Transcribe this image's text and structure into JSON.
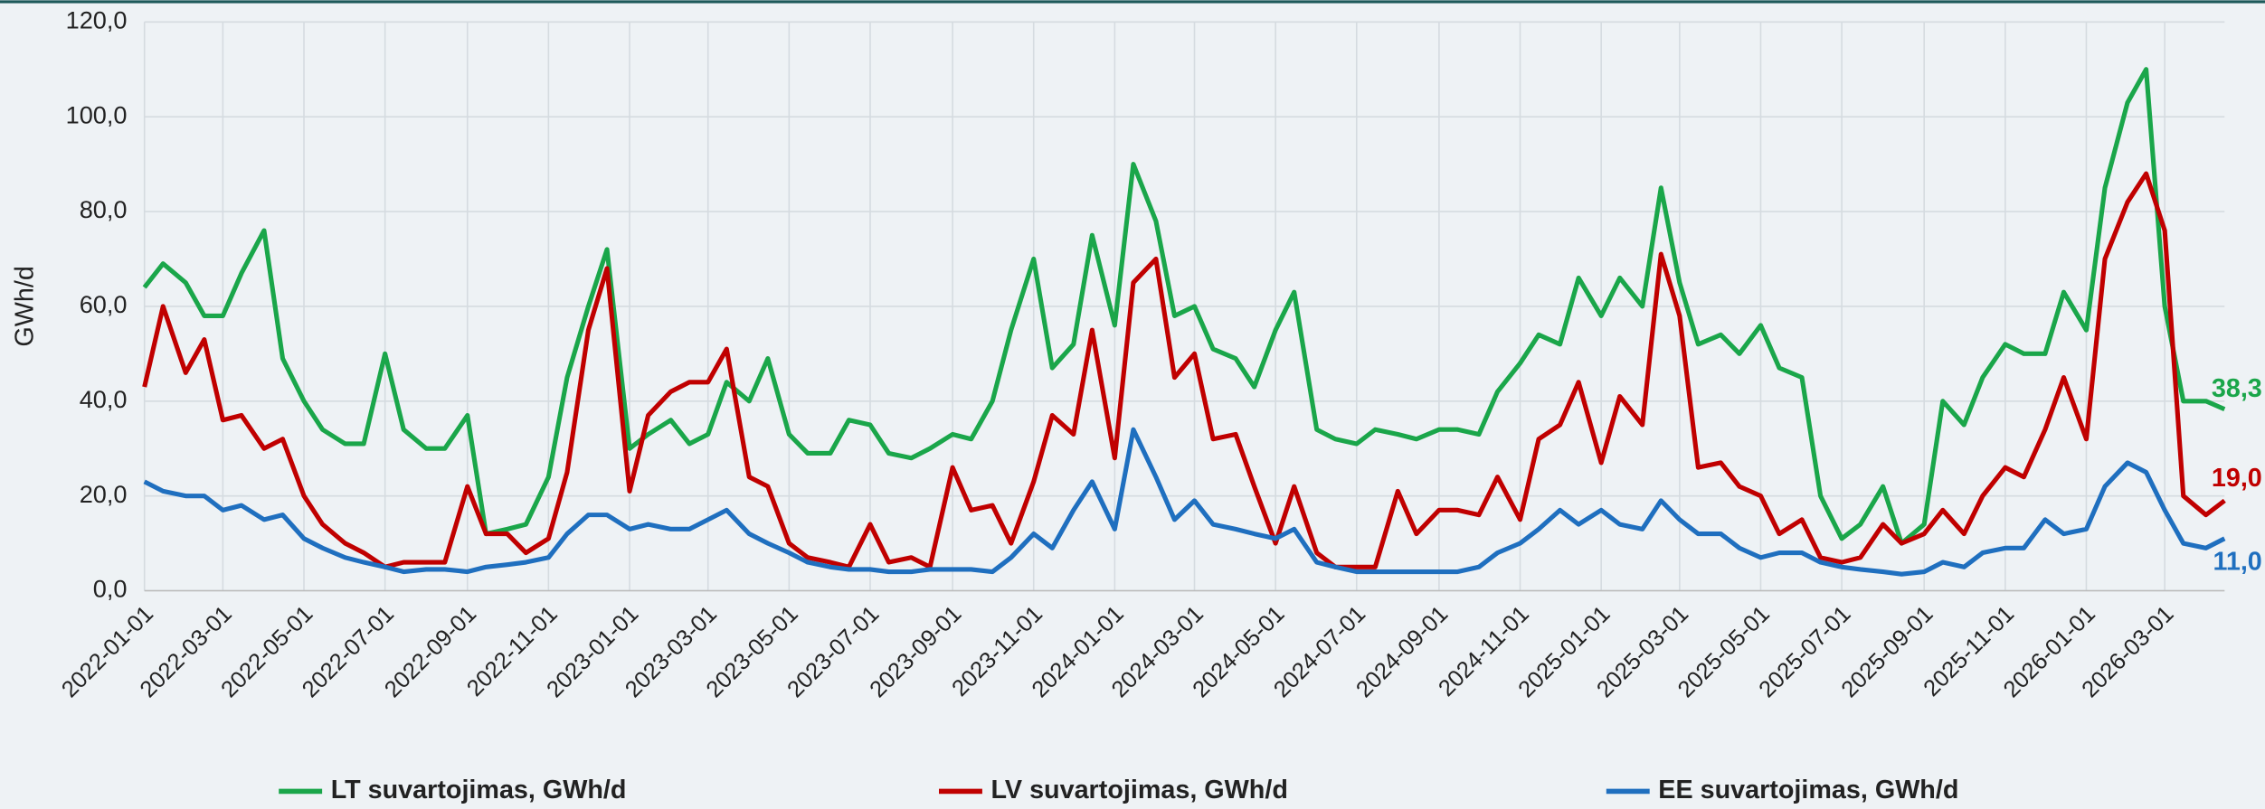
{
  "chart_data": {
    "type": "line",
    "y_label": "GWh/d",
    "x": [
      "2022-01-01",
      "2022-01-15",
      "2022-02-01",
      "2022-02-15",
      "2022-03-01",
      "2022-03-15",
      "2022-04-01",
      "2022-04-15",
      "2022-05-01",
      "2022-05-15",
      "2022-06-01",
      "2022-06-15",
      "2022-07-01",
      "2022-07-15",
      "2022-08-01",
      "2022-08-15",
      "2022-09-01",
      "2022-09-15",
      "2022-10-01",
      "2022-10-15",
      "2022-11-01",
      "2022-11-15",
      "2022-12-01",
      "2022-12-15",
      "2023-01-01",
      "2023-01-15",
      "2023-02-01",
      "2023-02-15",
      "2023-03-01",
      "2023-03-15",
      "2023-04-01",
      "2023-04-15",
      "2023-05-01",
      "2023-05-15",
      "2023-06-01",
      "2023-06-15",
      "2023-07-01",
      "2023-07-15",
      "2023-08-01",
      "2023-08-15",
      "2023-09-01",
      "2023-09-15",
      "2023-10-01",
      "2023-10-15",
      "2023-11-01",
      "2023-11-15",
      "2023-12-01",
      "2023-12-15",
      "2024-01-01",
      "2024-01-15",
      "2024-02-01",
      "2024-02-15",
      "2024-03-01",
      "2024-03-15",
      "2024-04-01",
      "2024-04-15",
      "2024-05-01",
      "2024-05-15",
      "2024-06-01",
      "2024-06-15",
      "2024-07-01",
      "2024-07-15",
      "2024-08-01",
      "2024-08-15",
      "2024-09-01",
      "2024-09-15",
      "2024-10-01",
      "2024-10-15",
      "2024-11-01",
      "2024-11-15",
      "2024-12-01",
      "2024-12-15",
      "2025-01-01",
      "2025-01-15",
      "2025-02-01",
      "2025-02-15",
      "2025-03-01",
      "2025-03-15",
      "2025-04-01",
      "2025-04-15",
      "2025-05-01",
      "2025-05-15",
      "2025-06-01",
      "2025-06-15",
      "2025-07-01",
      "2025-07-15",
      "2025-08-01",
      "2025-08-15",
      "2025-09-01",
      "2025-09-15",
      "2025-10-01",
      "2025-10-15",
      "2025-11-01",
      "2025-11-15",
      "2025-12-01",
      "2025-12-15",
      "2026-01-01",
      "2026-01-15",
      "2026-02-01",
      "2026-02-15",
      "2026-03-01",
      "2026-03-15",
      "2026-04-01",
      "2026-04-15"
    ],
    "series": [
      {
        "name": "LT suvartojimas, GWh/d",
        "color": "#1aa64a",
        "end_label": "38,3",
        "values": [
          64,
          69,
          65,
          58,
          58,
          67,
          76,
          49,
          40,
          34,
          31,
          31,
          50,
          34,
          30,
          30,
          37,
          12,
          13,
          14,
          24,
          45,
          60,
          72,
          30,
          33,
          36,
          31,
          33,
          44,
          40,
          49,
          33,
          29,
          29,
          36,
          35,
          29,
          28,
          30,
          33,
          32,
          40,
          55,
          70,
          47,
          52,
          75,
          56,
          90,
          78,
          58,
          60,
          51,
          49,
          43,
          55,
          63,
          34,
          32,
          31,
          34,
          33,
          32,
          34,
          34,
          33,
          42,
          48,
          54,
          52,
          66,
          58,
          66,
          60,
          85,
          65,
          52,
          54,
          50,
          56,
          47,
          45,
          20,
          11,
          14,
          22,
          10,
          14,
          40,
          35,
          45,
          52,
          50,
          50,
          63,
          55,
          85,
          103,
          110,
          60,
          40,
          40,
          38.3
        ]
      },
      {
        "name": "LV suvartojimas, GWh/d",
        "color": "#c00000",
        "end_label": "19,0",
        "values": [
          43,
          60,
          46,
          53,
          36,
          37,
          30,
          32,
          20,
          14,
          10,
          8,
          5,
          6,
          6,
          6,
          22,
          12,
          12,
          8,
          11,
          25,
          55,
          68,
          21,
          37,
          42,
          44,
          44,
          51,
          24,
          22,
          10,
          7,
          6,
          5,
          14,
          6,
          7,
          5,
          26,
          17,
          18,
          10,
          23,
          37,
          33,
          55,
          28,
          65,
          70,
          45,
          50,
          32,
          33,
          22,
          10,
          22,
          8,
          5,
          5,
          5,
          21,
          12,
          17,
          17,
          16,
          24,
          15,
          32,
          35,
          44,
          27,
          41,
          35,
          71,
          58,
          26,
          27,
          22,
          20,
          12,
          15,
          7,
          6,
          7,
          14,
          10,
          12,
          17,
          12,
          20,
          26,
          24,
          34,
          45,
          32,
          70,
          82,
          88,
          76,
          20,
          16,
          19
        ]
      },
      {
        "name": "EE suvartojimas, GWh/d",
        "color": "#1f6fbf",
        "end_label": "11,0",
        "values": [
          23,
          21,
          20,
          20,
          17,
          18,
          15,
          16,
          11,
          9,
          7,
          6,
          5,
          4,
          4.5,
          4.5,
          4,
          5,
          5.5,
          6,
          7,
          12,
          16,
          16,
          13,
          14,
          13,
          13,
          15,
          17,
          12,
          10,
          8,
          6,
          5,
          4.5,
          4.5,
          4,
          4,
          4.5,
          4.5,
          4.5,
          4,
          7,
          12,
          9,
          17,
          23,
          13,
          34,
          24,
          15,
          19,
          14,
          13,
          12,
          11,
          13,
          6,
          5,
          4,
          4,
          4,
          4,
          4,
          4,
          5,
          8,
          10,
          13,
          17,
          14,
          17,
          14,
          13,
          19,
          15,
          12,
          12,
          9,
          7,
          8,
          8,
          6,
          5,
          4.5,
          4,
          3.5,
          4,
          6,
          5,
          8,
          9,
          9,
          15,
          12,
          13,
          22,
          27,
          25,
          17,
          10,
          9,
          11
        ]
      }
    ],
    "xlim": [
      "2022-01-01",
      "2026-04-15"
    ],
    "xticks": [
      "2022-01-01",
      "2022-03-01",
      "2022-05-01",
      "2022-07-01",
      "2022-09-01",
      "2022-11-01",
      "2023-01-01",
      "2023-03-01",
      "2023-05-01",
      "2023-07-01",
      "2023-09-01",
      "2023-11-01",
      "2024-01-01",
      "2024-03-01",
      "2024-05-01",
      "2024-07-01",
      "2024-09-01",
      "2024-11-01",
      "2025-01-01",
      "2025-03-01",
      "2025-05-01",
      "2025-07-01",
      "2025-09-01",
      "2025-11-01",
      "2026-01-01",
      "2026-03-01"
    ],
    "ylim": [
      0,
      120
    ],
    "yticks": [
      {
        "value": 0,
        "label": "0,0"
      },
      {
        "value": 20,
        "label": "20,0"
      },
      {
        "value": 40,
        "label": "40,0"
      },
      {
        "value": 60,
        "label": "60,0"
      },
      {
        "value": 80,
        "label": "80,0"
      },
      {
        "value": 100,
        "label": "100,0"
      },
      {
        "value": 120,
        "label": "120,0"
      }
    ],
    "grid": true,
    "legend": "bottom"
  }
}
